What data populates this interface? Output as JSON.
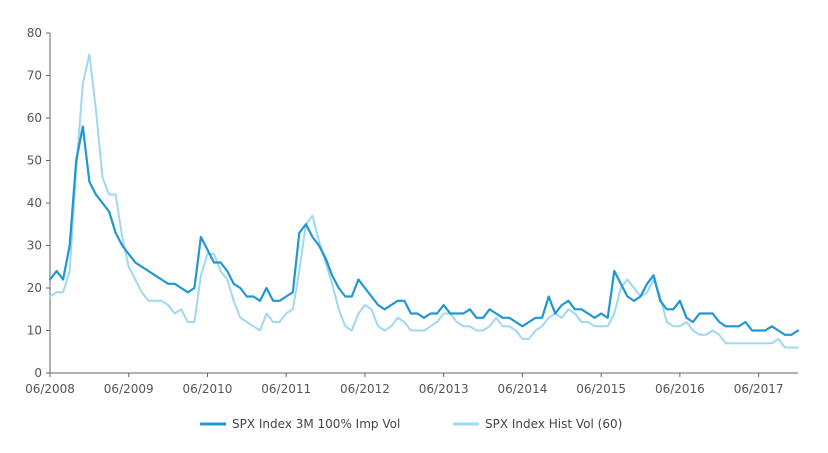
{
  "chart_data": {
    "type": "line",
    "title": "",
    "xlabel": "",
    "ylabel": "",
    "ylim": [
      0,
      80
    ],
    "yticks": [
      0,
      10,
      20,
      30,
      40,
      50,
      60,
      70,
      80
    ],
    "xlim": [
      "06/2008",
      "12/2017"
    ],
    "xticks": [
      "06/2008",
      "06/2009",
      "06/2010",
      "06/2011",
      "06/2012",
      "06/2013",
      "06/2014",
      "06/2015",
      "06/2016",
      "06/2017"
    ],
    "grid": false,
    "legend_position": "bottom-center",
    "series": [
      {
        "name": "SPX Index 3M 100% Imp Vol",
        "color": "#1f97d4",
        "points": [
          [
            "06/2008",
            22
          ],
          [
            "07/2008",
            24
          ],
          [
            "08/2008",
            22
          ],
          [
            "09/2008",
            30
          ],
          [
            "10/2008",
            50
          ],
          [
            "11/2008",
            58
          ],
          [
            "12/2008",
            45
          ],
          [
            "01/2009",
            42
          ],
          [
            "02/2009",
            40
          ],
          [
            "03/2009",
            38
          ],
          [
            "04/2009",
            33
          ],
          [
            "05/2009",
            30
          ],
          [
            "06/2009",
            28
          ],
          [
            "07/2009",
            26
          ],
          [
            "08/2009",
            25
          ],
          [
            "09/2009",
            24
          ],
          [
            "10/2009",
            23
          ],
          [
            "11/2009",
            22
          ],
          [
            "12/2009",
            21
          ],
          [
            "01/2010",
            21
          ],
          [
            "02/2010",
            20
          ],
          [
            "03/2010",
            19
          ],
          [
            "04/2010",
            20
          ],
          [
            "05/2010",
            32
          ],
          [
            "06/2010",
            29
          ],
          [
            "07/2010",
            26
          ],
          [
            "08/2010",
            26
          ],
          [
            "09/2010",
            24
          ],
          [
            "10/2010",
            21
          ],
          [
            "11/2010",
            20
          ],
          [
            "12/2010",
            18
          ],
          [
            "01/2011",
            18
          ],
          [
            "02/2011",
            17
          ],
          [
            "03/2011",
            20
          ],
          [
            "04/2011",
            17
          ],
          [
            "05/2011",
            17
          ],
          [
            "06/2011",
            18
          ],
          [
            "07/2011",
            19
          ],
          [
            "08/2011",
            33
          ],
          [
            "09/2011",
            35
          ],
          [
            "10/2011",
            32
          ],
          [
            "11/2011",
            30
          ],
          [
            "12/2011",
            27
          ],
          [
            "01/2012",
            23
          ],
          [
            "02/2012",
            20
          ],
          [
            "03/2012",
            18
          ],
          [
            "04/2012",
            18
          ],
          [
            "05/2012",
            22
          ],
          [
            "06/2012",
            20
          ],
          [
            "07/2012",
            18
          ],
          [
            "08/2012",
            16
          ],
          [
            "09/2012",
            15
          ],
          [
            "10/2012",
            16
          ],
          [
            "11/2012",
            17
          ],
          [
            "12/2012",
            17
          ],
          [
            "01/2013",
            14
          ],
          [
            "02/2013",
            14
          ],
          [
            "03/2013",
            13
          ],
          [
            "04/2013",
            14
          ],
          [
            "05/2013",
            14
          ],
          [
            "06/2013",
            16
          ],
          [
            "07/2013",
            14
          ],
          [
            "08/2013",
            14
          ],
          [
            "09/2013",
            14
          ],
          [
            "10/2013",
            15
          ],
          [
            "11/2013",
            13
          ],
          [
            "12/2013",
            13
          ],
          [
            "01/2014",
            15
          ],
          [
            "02/2014",
            14
          ],
          [
            "03/2014",
            13
          ],
          [
            "04/2014",
            13
          ],
          [
            "05/2014",
            12
          ],
          [
            "06/2014",
            11
          ],
          [
            "07/2014",
            12
          ],
          [
            "08/2014",
            13
          ],
          [
            "09/2014",
            13
          ],
          [
            "10/2014",
            18
          ],
          [
            "11/2014",
            14
          ],
          [
            "12/2014",
            16
          ],
          [
            "01/2015",
            17
          ],
          [
            "02/2015",
            15
          ],
          [
            "03/2015",
            15
          ],
          [
            "04/2015",
            14
          ],
          [
            "05/2015",
            13
          ],
          [
            "06/2015",
            14
          ],
          [
            "07/2015",
            13
          ],
          [
            "08/2015",
            24
          ],
          [
            "09/2015",
            21
          ],
          [
            "10/2015",
            18
          ],
          [
            "11/2015",
            17
          ],
          [
            "12/2015",
            18
          ],
          [
            "01/2016",
            21
          ],
          [
            "02/2016",
            23
          ],
          [
            "03/2016",
            17
          ],
          [
            "04/2016",
            15
          ],
          [
            "05/2016",
            15
          ],
          [
            "06/2016",
            17
          ],
          [
            "07/2016",
            13
          ],
          [
            "08/2016",
            12
          ],
          [
            "09/2016",
            14
          ],
          [
            "10/2016",
            14
          ],
          [
            "11/2016",
            14
          ],
          [
            "12/2016",
            12
          ],
          [
            "01/2017",
            11
          ],
          [
            "02/2017",
            11
          ],
          [
            "03/2017",
            11
          ],
          [
            "04/2017",
            12
          ],
          [
            "05/2017",
            10
          ],
          [
            "06/2017",
            10
          ],
          [
            "07/2017",
            10
          ],
          [
            "08/2017",
            11
          ],
          [
            "09/2017",
            10
          ],
          [
            "10/2017",
            9
          ],
          [
            "11/2017",
            9
          ],
          [
            "12/2017",
            10
          ]
        ]
      },
      {
        "name": "SPX Index Hist Vol (60)",
        "color": "#9fd8ef",
        "points": [
          [
            "06/2008",
            18
          ],
          [
            "07/2008",
            19
          ],
          [
            "08/2008",
            19
          ],
          [
            "09/2008",
            24
          ],
          [
            "10/2008",
            48
          ],
          [
            "11/2008",
            68
          ],
          [
            "12/2008",
            75
          ],
          [
            "01/2009",
            62
          ],
          [
            "02/2009",
            46
          ],
          [
            "03/2009",
            42
          ],
          [
            "04/2009",
            42
          ],
          [
            "05/2009",
            32
          ],
          [
            "06/2009",
            25
          ],
          [
            "07/2009",
            22
          ],
          [
            "08/2009",
            19
          ],
          [
            "09/2009",
            17
          ],
          [
            "10/2009",
            17
          ],
          [
            "11/2009",
            17
          ],
          [
            "12/2009",
            16
          ],
          [
            "01/2010",
            14
          ],
          [
            "02/2010",
            15
          ],
          [
            "03/2010",
            12
          ],
          [
            "04/2010",
            12
          ],
          [
            "05/2010",
            23
          ],
          [
            "06/2010",
            28
          ],
          [
            "07/2010",
            28
          ],
          [
            "08/2010",
            24
          ],
          [
            "09/2010",
            22
          ],
          [
            "10/2010",
            17
          ],
          [
            "11/2010",
            13
          ],
          [
            "12/2010",
            12
          ],
          [
            "01/2011",
            11
          ],
          [
            "02/2011",
            10
          ],
          [
            "03/2011",
            14
          ],
          [
            "04/2011",
            12
          ],
          [
            "05/2011",
            12
          ],
          [
            "06/2011",
            14
          ],
          [
            "07/2011",
            15
          ],
          [
            "08/2011",
            24
          ],
          [
            "09/2011",
            35
          ],
          [
            "10/2011",
            37
          ],
          [
            "11/2011",
            31
          ],
          [
            "12/2011",
            26
          ],
          [
            "01/2012",
            21
          ],
          [
            "02/2012",
            15
          ],
          [
            "03/2012",
            11
          ],
          [
            "04/2012",
            10
          ],
          [
            "05/2012",
            14
          ],
          [
            "06/2012",
            16
          ],
          [
            "07/2012",
            15
          ],
          [
            "08/2012",
            11
          ],
          [
            "09/2012",
            10
          ],
          [
            "10/2012",
            11
          ],
          [
            "11/2012",
            13
          ],
          [
            "12/2012",
            12
          ],
          [
            "01/2013",
            10
          ],
          [
            "02/2013",
            10
          ],
          [
            "03/2013",
            10
          ],
          [
            "04/2013",
            11
          ],
          [
            "05/2013",
            12
          ],
          [
            "06/2013",
            14
          ],
          [
            "07/2013",
            14
          ],
          [
            "08/2013",
            12
          ],
          [
            "09/2013",
            11
          ],
          [
            "10/2013",
            11
          ],
          [
            "11/2013",
            10
          ],
          [
            "12/2013",
            10
          ],
          [
            "01/2014",
            11
          ],
          [
            "02/2014",
            13
          ],
          [
            "03/2014",
            11
          ],
          [
            "04/2014",
            11
          ],
          [
            "05/2014",
            10
          ],
          [
            "06/2014",
            8
          ],
          [
            "07/2014",
            8
          ],
          [
            "08/2014",
            10
          ],
          [
            "09/2014",
            11
          ],
          [
            "10/2014",
            13
          ],
          [
            "11/2014",
            14
          ],
          [
            "12/2014",
            13
          ],
          [
            "01/2015",
            15
          ],
          [
            "02/2015",
            14
          ],
          [
            "03/2015",
            12
          ],
          [
            "04/2015",
            12
          ],
          [
            "05/2015",
            11
          ],
          [
            "06/2015",
            11
          ],
          [
            "07/2015",
            11
          ],
          [
            "08/2015",
            14
          ],
          [
            "09/2015",
            20
          ],
          [
            "10/2015",
            22
          ],
          [
            "11/2015",
            20
          ],
          [
            "12/2015",
            18
          ],
          [
            "01/2016",
            19
          ],
          [
            "02/2016",
            22
          ],
          [
            "03/2016",
            18
          ],
          [
            "04/2016",
            12
          ],
          [
            "05/2016",
            11
          ],
          [
            "06/2016",
            11
          ],
          [
            "07/2016",
            12
          ],
          [
            "08/2016",
            10
          ],
          [
            "09/2016",
            9
          ],
          [
            "10/2016",
            9
          ],
          [
            "11/2016",
            10
          ],
          [
            "12/2016",
            9
          ],
          [
            "01/2017",
            7
          ],
          [
            "02/2017",
            7
          ],
          [
            "03/2017",
            7
          ],
          [
            "04/2017",
            7
          ],
          [
            "05/2017",
            7
          ],
          [
            "06/2017",
            7
          ],
          [
            "07/2017",
            7
          ],
          [
            "08/2017",
            7
          ],
          [
            "09/2017",
            8
          ],
          [
            "10/2017",
            6
          ],
          [
            "11/2017",
            6
          ],
          [
            "12/2017",
            6
          ]
        ]
      }
    ]
  }
}
